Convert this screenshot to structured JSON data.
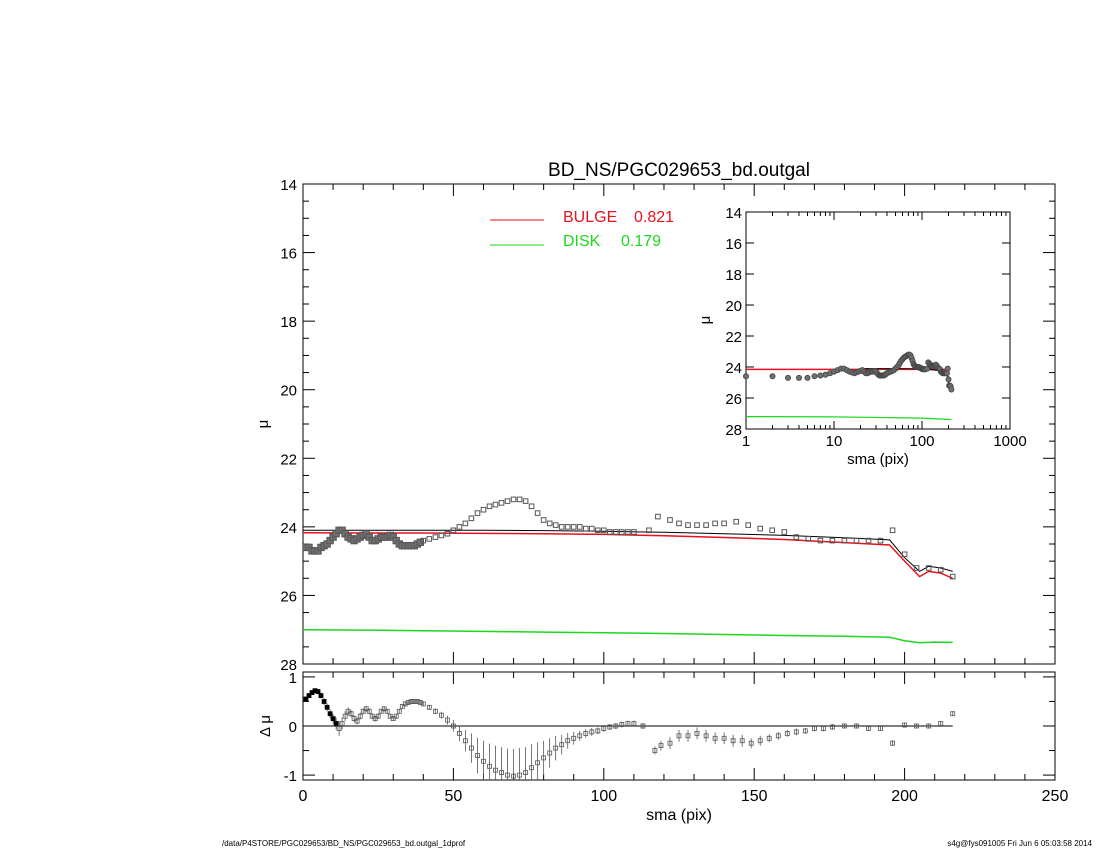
{
  "chart_data": {
    "type": "scatter",
    "title": "BD_NS/PGC029653_bd.outgal",
    "footer_left": "/data/P4STORE/PGC029653/BD_NS/PGC029653_bd.outgal_1dprof",
    "footer_right": "s4g@fys091005  Fri Jun  6 05:03:58 2014",
    "colors": {
      "bulge": "#e8121c",
      "disk": "#1ed81e",
      "data": "#707070",
      "model": "#000000"
    },
    "main": {
      "xlabel": "sma (pix)",
      "ylabel": "μ",
      "xlim": [
        0,
        250
      ],
      "ylim": [
        28,
        14
      ],
      "xticks": [
        "0",
        "50",
        "100",
        "150",
        "200",
        "250"
      ],
      "yticks": [
        "14",
        "16",
        "18",
        "20",
        "22",
        "24",
        "26",
        "28"
      ],
      "legend_position": "top-center",
      "legend": [
        {
          "name": "BULGE",
          "value": "0.821",
          "color": "#e8121c"
        },
        {
          "name": "DISK",
          "value": "0.179",
          "color": "#1ed81e"
        }
      ],
      "data_points": {
        "x": [
          1,
          2,
          3,
          4,
          5,
          6,
          7,
          8,
          9,
          10,
          11,
          12,
          13,
          14,
          15,
          16,
          17,
          18,
          19,
          20,
          21,
          22,
          23,
          24,
          25,
          26,
          27,
          28,
          29,
          30,
          31,
          32,
          33,
          34,
          35,
          36,
          37,
          38,
          39,
          40,
          42,
          44,
          46,
          48,
          50,
          52,
          54,
          56,
          58,
          60,
          62,
          64,
          66,
          68,
          70,
          72,
          74,
          76,
          78,
          80,
          82,
          84,
          86,
          88,
          90,
          92,
          94,
          96,
          98,
          100,
          102,
          104,
          106,
          108,
          110,
          115,
          118,
          122,
          125,
          128,
          131,
          134,
          137,
          140,
          144,
          148,
          152,
          156,
          160,
          164,
          168,
          172,
          176,
          180,
          184,
          188,
          192,
          196,
          200,
          204,
          208,
          212,
          216
        ],
        "y": [
          24.6,
          24.6,
          24.7,
          24.7,
          24.7,
          24.6,
          24.55,
          24.5,
          24.4,
          24.3,
          24.2,
          24.1,
          24.1,
          24.2,
          24.3,
          24.35,
          24.4,
          24.35,
          24.3,
          24.25,
          24.2,
          24.3,
          24.4,
          24.4,
          24.35,
          24.3,
          24.3,
          24.3,
          24.25,
          24.3,
          24.4,
          24.5,
          24.55,
          24.55,
          24.55,
          24.55,
          24.55,
          24.5,
          24.45,
          24.4,
          24.35,
          24.3,
          24.25,
          24.2,
          24.1,
          24.0,
          23.9,
          23.75,
          23.6,
          23.5,
          23.4,
          23.35,
          23.3,
          23.25,
          23.2,
          23.2,
          23.25,
          23.4,
          23.6,
          23.8,
          23.9,
          23.95,
          24.0,
          24.0,
          24.0,
          24.0,
          24.05,
          24.05,
          24.1,
          24.1,
          24.15,
          24.15,
          24.15,
          24.15,
          24.15,
          24.1,
          23.7,
          23.8,
          23.9,
          23.95,
          23.95,
          23.95,
          23.9,
          23.9,
          23.85,
          23.95,
          24.05,
          24.1,
          24.15,
          24.3,
          24.35,
          24.4,
          24.4,
          24.4,
          24.4,
          24.4,
          24.4,
          24.1,
          24.8,
          25.2,
          25.2,
          25.25,
          25.45
        ]
      },
      "total_model": {
        "x": [
          0,
          20,
          40,
          60,
          80,
          100,
          120,
          140,
          160,
          180,
          195,
          200,
          205,
          208,
          212,
          216
        ],
        "y": [
          24.1,
          24.1,
          24.1,
          24.1,
          24.11,
          24.13,
          24.16,
          24.2,
          24.25,
          24.32,
          24.38,
          24.9,
          25.3,
          25.15,
          25.2,
          25.3
        ]
      },
      "bulge_model": {
        "x": [
          0,
          20,
          40,
          60,
          80,
          100,
          120,
          140,
          160,
          180,
          195,
          200,
          205,
          208,
          212,
          216
        ],
        "y": [
          24.17,
          24.18,
          24.18,
          24.19,
          24.2,
          24.22,
          24.26,
          24.31,
          24.37,
          24.46,
          24.53,
          25.0,
          25.45,
          25.3,
          25.35,
          25.5
        ]
      },
      "disk_model": {
        "x": [
          0,
          20,
          40,
          60,
          80,
          100,
          120,
          140,
          160,
          180,
          195,
          200,
          205,
          210,
          216
        ],
        "y": [
          27.0,
          27.01,
          27.03,
          27.05,
          27.07,
          27.09,
          27.11,
          27.14,
          27.17,
          27.19,
          27.22,
          27.32,
          27.38,
          27.36,
          27.37
        ]
      }
    },
    "inset": {
      "xlabel": "sma (pix)",
      "ylabel": "μ",
      "xscale": "log",
      "xlim": [
        1,
        1000
      ],
      "ylim": [
        28,
        14
      ],
      "xticks": [
        "1",
        "10",
        "100",
        "1000"
      ],
      "yticks": [
        "14",
        "16",
        "18",
        "20",
        "22",
        "24",
        "26",
        "28"
      ],
      "bulge_level": 24.15,
      "disk_model": {
        "x": [
          1,
          10,
          100,
          200,
          216
        ],
        "y": [
          27.2,
          27.22,
          27.3,
          27.38,
          27.4
        ]
      }
    },
    "residual": {
      "xlabel": "sma (pix)",
      "ylabel": "Δ μ",
      "xlim": [
        0,
        250
      ],
      "ylim": [
        -1.1,
        1.1
      ],
      "yticks": [
        "1",
        "0",
        "-1"
      ],
      "x": [
        1,
        2,
        3,
        4,
        5,
        6,
        7,
        8,
        9,
        10,
        11,
        12,
        13,
        14,
        15,
        16,
        17,
        18,
        19,
        20,
        21,
        22,
        23,
        24,
        25,
        26,
        27,
        28,
        29,
        30,
        31,
        32,
        33,
        34,
        35,
        36,
        37,
        38,
        39,
        40,
        42,
        44,
        46,
        48,
        50,
        52,
        54,
        56,
        58,
        60,
        62,
        64,
        66,
        68,
        70,
        72,
        74,
        76,
        78,
        80,
        82,
        84,
        86,
        88,
        90,
        92,
        94,
        96,
        98,
        100,
        102,
        104,
        106,
        108,
        110,
        113,
        117,
        119,
        122,
        125,
        128,
        131,
        134,
        137,
        140,
        143,
        146,
        149,
        152,
        155,
        158,
        161,
        164,
        167,
        170,
        173,
        176,
        180,
        184,
        188,
        192,
        196,
        200,
        204,
        208,
        212,
        216
      ],
      "y": [
        0.55,
        0.62,
        0.68,
        0.72,
        0.7,
        0.62,
        0.5,
        0.38,
        0.25,
        0.15,
        0.05,
        -0.05,
        0.05,
        0.2,
        0.3,
        0.25,
        0.15,
        0.1,
        0.2,
        0.3,
        0.35,
        0.3,
        0.2,
        0.15,
        0.2,
        0.3,
        0.35,
        0.3,
        0.2,
        0.15,
        0.2,
        0.3,
        0.4,
        0.45,
        0.48,
        0.5,
        0.5,
        0.5,
        0.48,
        0.45,
        0.38,
        0.3,
        0.22,
        0.12,
        0.0,
        -0.15,
        -0.3,
        -0.45,
        -0.6,
        -0.72,
        -0.82,
        -0.9,
        -0.95,
        -1.0,
        -1.02,
        -1.0,
        -0.95,
        -0.85,
        -0.75,
        -0.65,
        -0.55,
        -0.45,
        -0.38,
        -0.3,
        -0.25,
        -0.2,
        -0.15,
        -0.12,
        -0.1,
        -0.05,
        -0.02,
        0.0,
        0.03,
        0.05,
        0.05,
        0.0,
        -0.5,
        -0.4,
        -0.35,
        -0.2,
        -0.2,
        -0.15,
        -0.2,
        -0.25,
        -0.25,
        -0.3,
        -0.3,
        -0.35,
        -0.3,
        -0.25,
        -0.2,
        -0.15,
        -0.12,
        -0.1,
        -0.05,
        -0.05,
        -0.02,
        0.0,
        0.0,
        -0.05,
        -0.05,
        -0.35,
        0.02,
        0.0,
        0.0,
        0.05,
        0.25
      ],
      "err": [
        0.05,
        0.05,
        0.05,
        0.05,
        0.05,
        0.06,
        0.07,
        0.08,
        0.09,
        0.1,
        0.12,
        0.15,
        0.12,
        0.1,
        0.08,
        0.07,
        0.07,
        0.07,
        0.07,
        0.06,
        0.06,
        0.06,
        0.06,
        0.06,
        0.06,
        0.05,
        0.05,
        0.05,
        0.05,
        0.05,
        0.05,
        0.05,
        0.05,
        0.05,
        0.05,
        0.05,
        0.05,
        0.05,
        0.05,
        0.05,
        0.05,
        0.06,
        0.07,
        0.09,
        0.12,
        0.16,
        0.22,
        0.3,
        0.36,
        0.42,
        0.46,
        0.5,
        0.52,
        0.54,
        0.55,
        0.55,
        0.52,
        0.48,
        0.42,
        0.35,
        0.3,
        0.25,
        0.2,
        0.16,
        0.13,
        0.1,
        0.09,
        0.08,
        0.07,
        0.07,
        0.06,
        0.06,
        0.06,
        0.06,
        0.06,
        0.06,
        0.08,
        0.1,
        0.12,
        0.12,
        0.12,
        0.12,
        0.12,
        0.12,
        0.12,
        0.12,
        0.12,
        0.1,
        0.1,
        0.08,
        0.08,
        0.07,
        0.07,
        0.06,
        0.06,
        0.06,
        0.06,
        0.05,
        0.05,
        0.05,
        0.05,
        0.06,
        0.05,
        0.05,
        0.05,
        0.05,
        0.05
      ]
    }
  }
}
